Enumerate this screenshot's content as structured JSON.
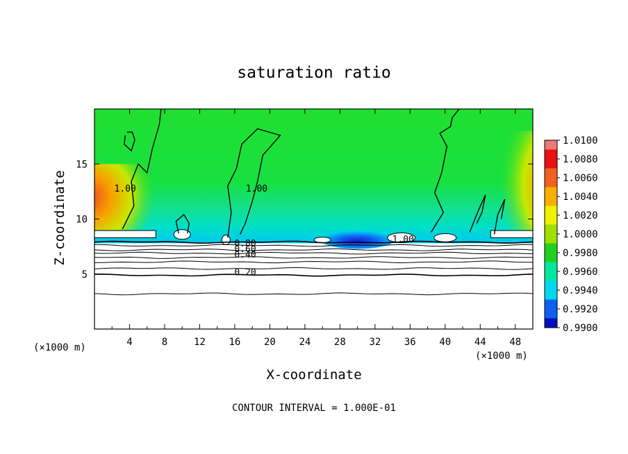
{
  "chart_data": {
    "type": "heatmap",
    "title": "saturation ratio",
    "xlabel": "X-coordinate",
    "ylabel": "Z-coordinate",
    "x_unit_note": "(×1000 m)",
    "x_unit_note_right": "(×1000 m)",
    "footer": "CONTOUR INTERVAL = 1.000E-01",
    "xlim": [
      0,
      50
    ],
    "ylim": [
      0,
      20
    ],
    "x_ticks": [
      4,
      8,
      12,
      16,
      20,
      24,
      28,
      32,
      36,
      40,
      44,
      48
    ],
    "y_ticks": [
      5,
      10,
      15
    ],
    "colorbar": {
      "ticks": [
        "1.0100",
        "1.0080",
        "1.0060",
        "1.0040",
        "1.0020",
        "1.0000",
        "0.9980",
        "0.9960",
        "0.9940",
        "0.9920",
        "0.9900"
      ],
      "colors": [
        "#f07878",
        "#e81010",
        "#f06020",
        "#f8b000",
        "#f0f000",
        "#a0e000",
        "#20d020",
        "#00e8a0",
        "#00d8f0",
        "#1060f0",
        "#0010c0",
        "#7000a0"
      ]
    },
    "field": {
      "background_value": 0.998,
      "warm_zones": [
        {
          "x": [
            0,
            3
          ],
          "z": [
            9,
            15
          ],
          "value": 1.006
        },
        {
          "x": [
            47,
            50
          ],
          "z": [
            9,
            18
          ],
          "value": 1.006
        }
      ],
      "dry_zone": {
        "x": [
          28,
          32
        ],
        "z": [
          7.8,
          8.8
        ],
        "value": 0.993
      },
      "cloud_base_z": 7.8
    },
    "contour_labels": [
      {
        "text": "1.00",
        "x": 3.5,
        "z": 12.5
      },
      {
        "text": "1.00",
        "x": 18.5,
        "z": 12.5
      },
      {
        "text": "1.00",
        "x": 35.2,
        "z": 7.9
      },
      {
        "text": "0.80",
        "x": 17.2,
        "z": 7.5
      },
      {
        "text": "0.60",
        "x": 17.2,
        "z": 7.0
      },
      {
        "text": "0.40",
        "x": 17.2,
        "z": 6.5
      },
      {
        "text": "0.20",
        "x": 17.2,
        "z": 4.9
      }
    ],
    "contour_levels": [
      0.2,
      0.3,
      0.4,
      0.5,
      0.6,
      0.7,
      0.8,
      0.9,
      1.0
    ]
  }
}
